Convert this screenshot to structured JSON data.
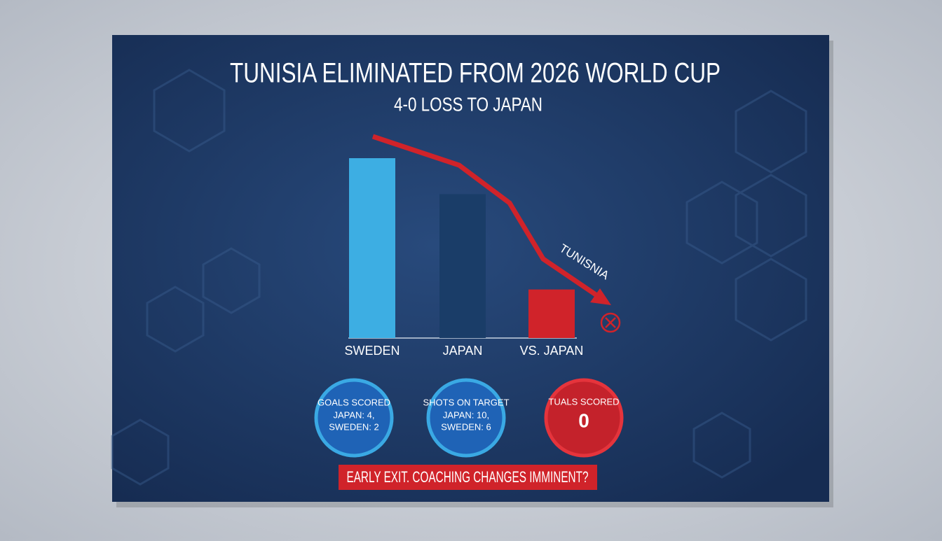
{
  "chart_data": {
    "type": "bar",
    "title": "TUNISIA ELIMINATED FROM 2026 WORLD CUP",
    "subtitle": "4-0 LOSS TO JAPAN",
    "categories": [
      "SWEDEN",
      "JAPAN",
      "VS. JAPAN"
    ],
    "values": [
      100,
      80,
      27
    ],
    "colors": [
      "#3daee3",
      "#1a3d68",
      "#d0232a"
    ],
    "ylim": [
      0,
      100
    ],
    "annotation": "TUNISNIA"
  },
  "stats": [
    {
      "title": "GOALS SCORED",
      "lines": [
        "JAPAN: 4,",
        "SWEDEN: 2"
      ]
    },
    {
      "title": "SHOTS ON TARGET",
      "lines": [
        "JAPAN: 10,",
        "SWEDEN: 6"
      ]
    },
    {
      "title": "TUALS SCORED",
      "lines": [
        0
      ]
    }
  ],
  "banner": "EARLY EXIT. COACHING CHANGES IMMINENT?"
}
